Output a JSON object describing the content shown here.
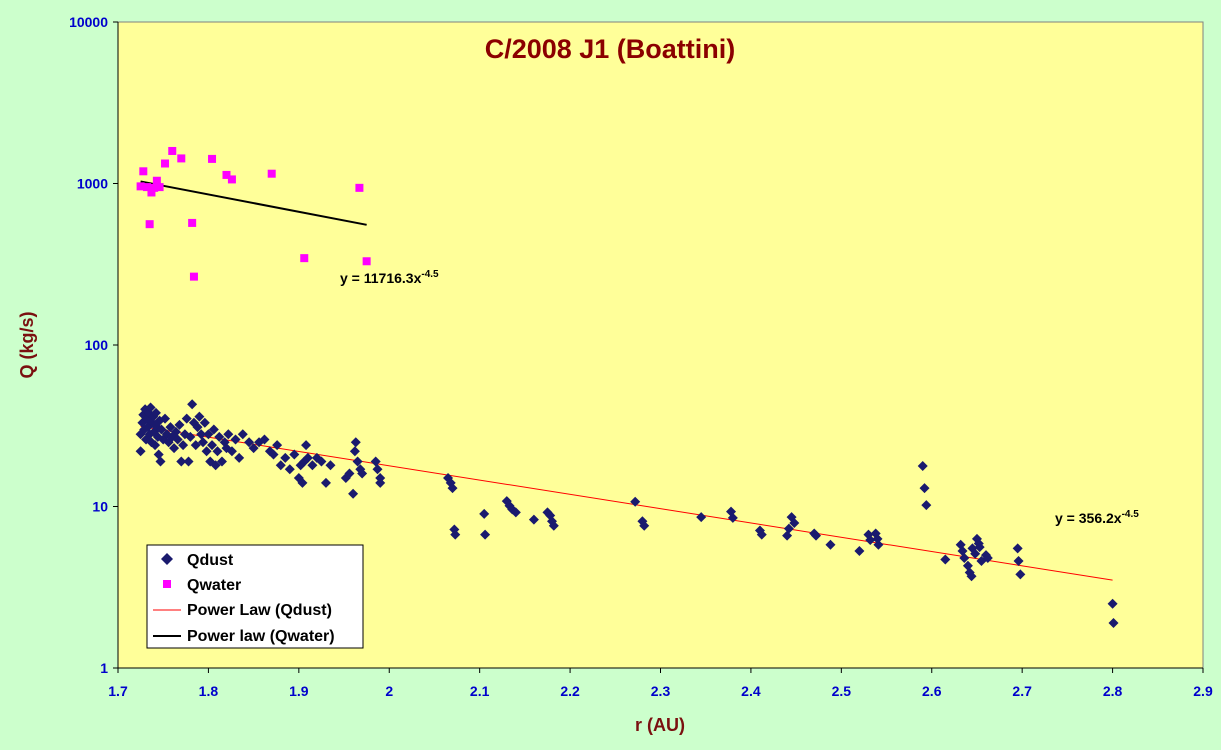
{
  "colors": {
    "page_bg": "#ccffcc",
    "plot_bg": "#ffff99",
    "title": "#8b0000",
    "axis_title": "#7a1010",
    "tick_label": "#0000cc",
    "qdust": "#1a1a6e",
    "qwater": "#ff00ff",
    "qdust_fit": "#ff0000",
    "qwater_fit": "#000000"
  },
  "chart_data": {
    "type": "scatter",
    "title": "C/2008 J1 (Boattini)",
    "xlabel": "r (AU)",
    "ylabel": "Q (kg/s)",
    "xlim": [
      1.7,
      2.9
    ],
    "ylim": [
      1,
      10000
    ],
    "y_scale": "log",
    "grid": false,
    "legend_placement": "bottom-left",
    "x_ticks": [
      "1.7",
      "1.8",
      "1.9",
      "2",
      "2.1",
      "2.2",
      "2.3",
      "2.4",
      "2.5",
      "2.6",
      "2.7",
      "2.8",
      "2.9"
    ],
    "y_ticks": [
      "1",
      "10",
      "100",
      "1000",
      "10000"
    ],
    "series": [
      {
        "name": "Qdust",
        "marker": "diamond",
        "points": [
          [
            1.725,
            22
          ],
          [
            1.725,
            28
          ],
          [
            1.727,
            33
          ],
          [
            1.728,
            37
          ],
          [
            1.729,
            30
          ],
          [
            1.73,
            40
          ],
          [
            1.731,
            26
          ],
          [
            1.732,
            35
          ],
          [
            1.733,
            31
          ],
          [
            1.734,
            38
          ],
          [
            1.735,
            28
          ],
          [
            1.736,
            41
          ],
          [
            1.737,
            25
          ],
          [
            1.738,
            33
          ],
          [
            1.739,
            36
          ],
          [
            1.74,
            29
          ],
          [
            1.741,
            24
          ],
          [
            1.742,
            38
          ],
          [
            1.743,
            31
          ],
          [
            1.744,
            27
          ],
          [
            1.745,
            21
          ],
          [
            1.746,
            34
          ],
          [
            1.747,
            19
          ],
          [
            1.748,
            30
          ],
          [
            1.75,
            26
          ],
          [
            1.752,
            35
          ],
          [
            1.754,
            28
          ],
          [
            1.756,
            25
          ],
          [
            1.758,
            31
          ],
          [
            1.76,
            27
          ],
          [
            1.762,
            23
          ],
          [
            1.764,
            29
          ],
          [
            1.766,
            26
          ],
          [
            1.768,
            32
          ],
          [
            1.77,
            19
          ],
          [
            1.772,
            24
          ],
          [
            1.774,
            28
          ],
          [
            1.776,
            35
          ],
          [
            1.778,
            19
          ],
          [
            1.78,
            27
          ],
          [
            1.782,
            43
          ],
          [
            1.784,
            33
          ],
          [
            1.786,
            24
          ],
          [
            1.788,
            31
          ],
          [
            1.79,
            36
          ],
          [
            1.792,
            28
          ],
          [
            1.794,
            25
          ],
          [
            1.796,
            33
          ],
          [
            1.798,
            22
          ],
          [
            1.8,
            28
          ],
          [
            1.802,
            19
          ],
          [
            1.804,
            24
          ],
          [
            1.806,
            30
          ],
          [
            1.808,
            18
          ],
          [
            1.81,
            22
          ],
          [
            1.812,
            27
          ],
          [
            1.815,
            19
          ],
          [
            1.818,
            25
          ],
          [
            1.82,
            23
          ],
          [
            1.822,
            28
          ],
          [
            1.826,
            22
          ],
          [
            1.83,
            26
          ],
          [
            1.834,
            20
          ],
          [
            1.838,
            28
          ],
          [
            1.845,
            25
          ],
          [
            1.85,
            23
          ],
          [
            1.856,
            25
          ],
          [
            1.862,
            26
          ],
          [
            1.868,
            22
          ],
          [
            1.872,
            21
          ],
          [
            1.876,
            24
          ],
          [
            1.88,
            18
          ],
          [
            1.885,
            20
          ],
          [
            1.89,
            17
          ],
          [
            1.895,
            21
          ],
          [
            1.9,
            15
          ],
          [
            1.902,
            18
          ],
          [
            1.904,
            14
          ],
          [
            1.906,
            19
          ],
          [
            1.908,
            24
          ],
          [
            1.91,
            20
          ],
          [
            1.915,
            18
          ],
          [
            1.92,
            20
          ],
          [
            1.925,
            19
          ],
          [
            1.93,
            14
          ],
          [
            1.935,
            18
          ],
          [
            1.952,
            15
          ],
          [
            1.956,
            16
          ],
          [
            1.96,
            12
          ],
          [
            1.962,
            22
          ],
          [
            1.963,
            25
          ],
          [
            1.965,
            19
          ],
          [
            1.968,
            17
          ],
          [
            1.97,
            16
          ],
          [
            1.985,
            19
          ],
          [
            1.987,
            17
          ],
          [
            1.99,
            15
          ],
          [
            1.99,
            14
          ],
          [
            2.065,
            15
          ],
          [
            2.068,
            14
          ],
          [
            2.07,
            13
          ],
          [
            2.072,
            7.2
          ],
          [
            2.073,
            6.7
          ],
          [
            2.105,
            9
          ],
          [
            2.106,
            6.7
          ],
          [
            2.13,
            10.8
          ],
          [
            2.133,
            10.1
          ],
          [
            2.136,
            9.6
          ],
          [
            2.14,
            9.2
          ],
          [
            2.16,
            8.3
          ],
          [
            2.175,
            9.2
          ],
          [
            2.178,
            8.8
          ],
          [
            2.18,
            8.1
          ],
          [
            2.182,
            7.6
          ],
          [
            2.272,
            10.7
          ],
          [
            2.28,
            8.1
          ],
          [
            2.282,
            7.6
          ],
          [
            2.345,
            8.6
          ],
          [
            2.378,
            9.3
          ],
          [
            2.38,
            8.5
          ],
          [
            2.41,
            7.1
          ],
          [
            2.412,
            6.7
          ],
          [
            2.44,
            6.6
          ],
          [
            2.442,
            7.3
          ],
          [
            2.445,
            8.6
          ],
          [
            2.448,
            7.9
          ],
          [
            2.47,
            6.8
          ],
          [
            2.472,
            6.6
          ],
          [
            2.488,
            5.8
          ],
          [
            2.52,
            5.3
          ],
          [
            2.53,
            6.7
          ],
          [
            2.532,
            6.2
          ],
          [
            2.538,
            6.8
          ],
          [
            2.54,
            6.3
          ],
          [
            2.541,
            5.8
          ],
          [
            2.59,
            17.8
          ],
          [
            2.592,
            13
          ],
          [
            2.594,
            10.2
          ],
          [
            2.615,
            4.7
          ],
          [
            2.632,
            5.8
          ],
          [
            2.634,
            5.3
          ],
          [
            2.636,
            4.8
          ],
          [
            2.64,
            4.3
          ],
          [
            2.642,
            3.9
          ],
          [
            2.644,
            3.7
          ],
          [
            2.645,
            5.5
          ],
          [
            2.648,
            5.1
          ],
          [
            2.65,
            6.3
          ],
          [
            2.652,
            5.9
          ],
          [
            2.653,
            5.6
          ],
          [
            2.655,
            4.6
          ],
          [
            2.66,
            5
          ],
          [
            2.662,
            4.8
          ],
          [
            2.695,
            5.5
          ],
          [
            2.696,
            4.6
          ],
          [
            2.698,
            3.8
          ],
          [
            2.8,
            2.5
          ],
          [
            2.801,
            1.9
          ]
        ]
      },
      {
        "name": "Qwater",
        "marker": "square",
        "points": [
          [
            1.725,
            960
          ],
          [
            1.728,
            1190
          ],
          [
            1.732,
            950
          ],
          [
            1.735,
            560
          ],
          [
            1.737,
            880
          ],
          [
            1.74,
            940
          ],
          [
            1.743,
            1040
          ],
          [
            1.746,
            950
          ],
          [
            1.752,
            1330
          ],
          [
            1.76,
            1590
          ],
          [
            1.77,
            1430
          ],
          [
            1.782,
            570
          ],
          [
            1.784,
            265
          ],
          [
            1.804,
            1420
          ],
          [
            1.82,
            1130
          ],
          [
            1.826,
            1060
          ],
          [
            1.87,
            1150
          ],
          [
            1.906,
            345
          ],
          [
            1.967,
            940
          ],
          [
            1.975,
            330
          ]
        ]
      }
    ],
    "trendlines": [
      {
        "name": "Power Law (Qdust)",
        "label": "y = 356.2x",
        "label_exponent": "-4.5",
        "points": [
          [
            1.725,
            31.3
          ],
          [
            2.8,
            3.5
          ]
        ]
      },
      {
        "name": "Power law (Qwater)",
        "label": "y = 11716.3x",
        "label_exponent": "-4.5",
        "points": [
          [
            1.725,
            1030
          ],
          [
            1.975,
            555
          ]
        ]
      }
    ]
  },
  "legend": {
    "items": [
      "Qdust",
      "Qwater",
      "Power Law (Qdust)",
      "Power law (Qwater)"
    ]
  }
}
